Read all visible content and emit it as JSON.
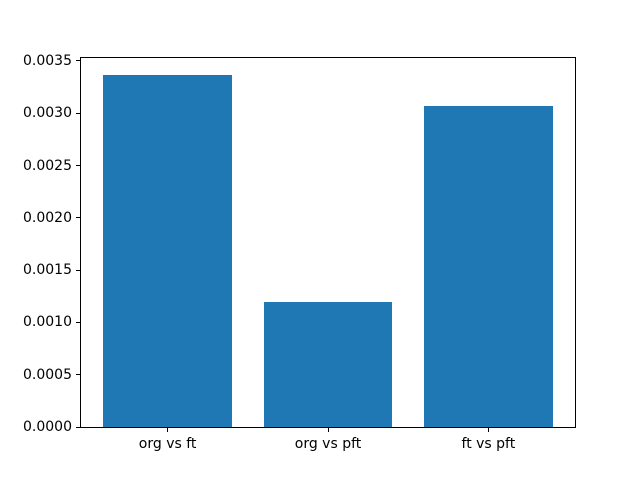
{
  "chart_data": {
    "type": "bar",
    "title": "",
    "xlabel": "",
    "ylabel": "",
    "categories": [
      "org vs ft",
      "org vs pft",
      "ft vs pft"
    ],
    "values": [
      0.00337,
      0.0012,
      0.00307
    ],
    "bar_color": "#1f77b4",
    "spine_color": "#000000",
    "ylim": [
      0,
      0.003528
    ],
    "yticks": [
      0.0,
      0.0005,
      0.001,
      0.0015,
      0.002,
      0.0025,
      0.003,
      0.0035
    ],
    "ytick_labels": [
      "0.0000",
      "0.0005",
      "0.0010",
      "0.0015",
      "0.0020",
      "0.0025",
      "0.0030",
      "0.0035"
    ],
    "bar_width_fraction": 0.8,
    "x_margin_fraction": 0.05,
    "grid": false,
    "legend": null
  }
}
